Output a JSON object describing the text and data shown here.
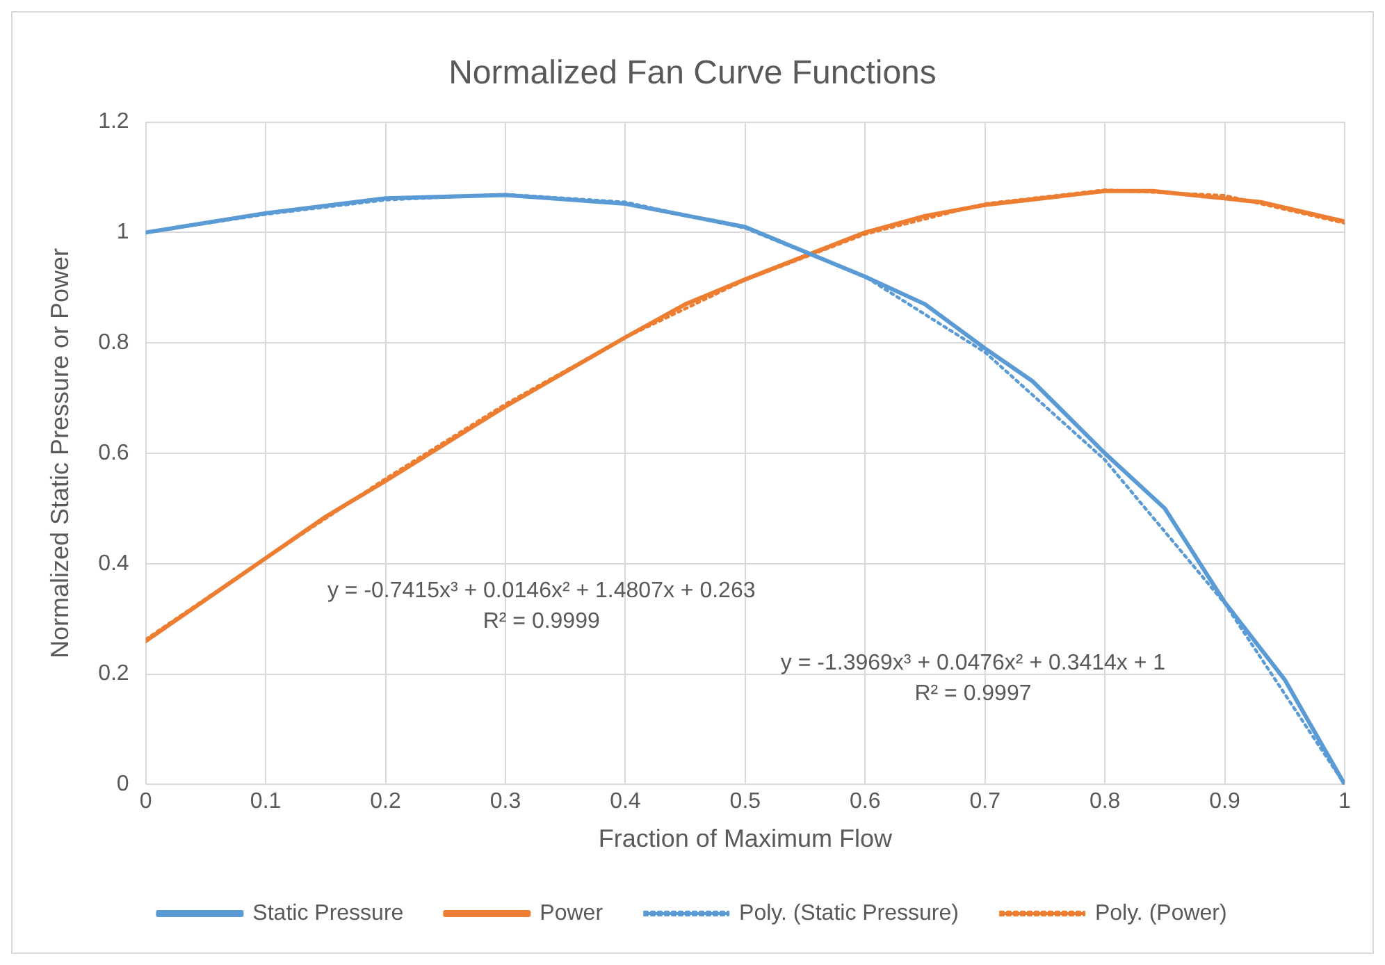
{
  "chart_data": {
    "type": "line",
    "title": "Normalized Fan Curve Functions",
    "xlabel": "Fraction of Maximum Flow",
    "ylabel": "Normalized Static Pressure or Power",
    "xlim": [
      0,
      1
    ],
    "xticks": [
      0,
      0.1,
      0.2,
      0.3,
      0.4,
      0.5,
      0.6,
      0.7,
      0.8,
      0.9,
      1
    ],
    "ylim": [
      0,
      1.2
    ],
    "yticks": [
      0,
      0.2,
      0.4,
      0.6,
      0.8,
      1,
      1.2
    ],
    "grid": true,
    "legend": "bottom",
    "marker": "none",
    "series": [
      {
        "name": "Static Pressure",
        "color": "#5b9bd5",
        "line_style": "solid",
        "x": [
          0,
          0.1,
          0.2,
          0.3,
          0.4,
          0.5,
          0.6,
          0.65,
          0.7,
          0.74,
          0.8,
          0.85,
          0.9,
          0.95,
          1
        ],
        "values": [
          1,
          1.035,
          1.062,
          1.068,
          1.052,
          1.01,
          0.92,
          0.87,
          0.79,
          0.73,
          0.6,
          0.5,
          0.33,
          0.19,
          0
        ]
      },
      {
        "name": "Power",
        "color": "#ed7d31",
        "line_style": "solid",
        "x": [
          0,
          0.1,
          0.15,
          0.2,
          0.3,
          0.4,
          0.45,
          0.5,
          0.6,
          0.65,
          0.7,
          0.8,
          0.84,
          0.93,
          1
        ],
        "values": [
          0.26,
          0.41,
          0.485,
          0.55,
          0.685,
          0.81,
          0.87,
          0.915,
          1,
          1.03,
          1.05,
          1.075,
          1.075,
          1.055,
          1.02
        ]
      },
      {
        "name": "Poly. (Static Pressure)",
        "color": "#5b9bd5",
        "line_style": "dotted",
        "x": [
          0,
          0.1,
          0.2,
          0.3,
          0.4,
          0.5,
          0.6,
          0.7,
          0.8,
          0.9,
          1
        ],
        "values": [
          1,
          1.033,
          1.059,
          1.069,
          1.055,
          1.008,
          0.92,
          0.783,
          0.588,
          0.328,
          0
        ]
      },
      {
        "name": "Poly. (Power)",
        "color": "#ed7d31",
        "line_style": "dotted",
        "x": [
          0,
          0.1,
          0.2,
          0.3,
          0.4,
          0.5,
          0.6,
          0.7,
          0.8,
          0.9,
          1
        ],
        "values": [
          0.263,
          0.41,
          0.554,
          0.689,
          0.81,
          0.914,
          0.997,
          1.052,
          1.077,
          1.067,
          1.017
        ]
      }
    ],
    "annotations": [
      "y = -0.7415x³ + 0.0146x² + 1.4807x + 0.263",
      "R² = 0.9999",
      "y = -1.3969x³ + 0.0476x² + 0.3414x + 1",
      "R² = 0.9997"
    ]
  }
}
